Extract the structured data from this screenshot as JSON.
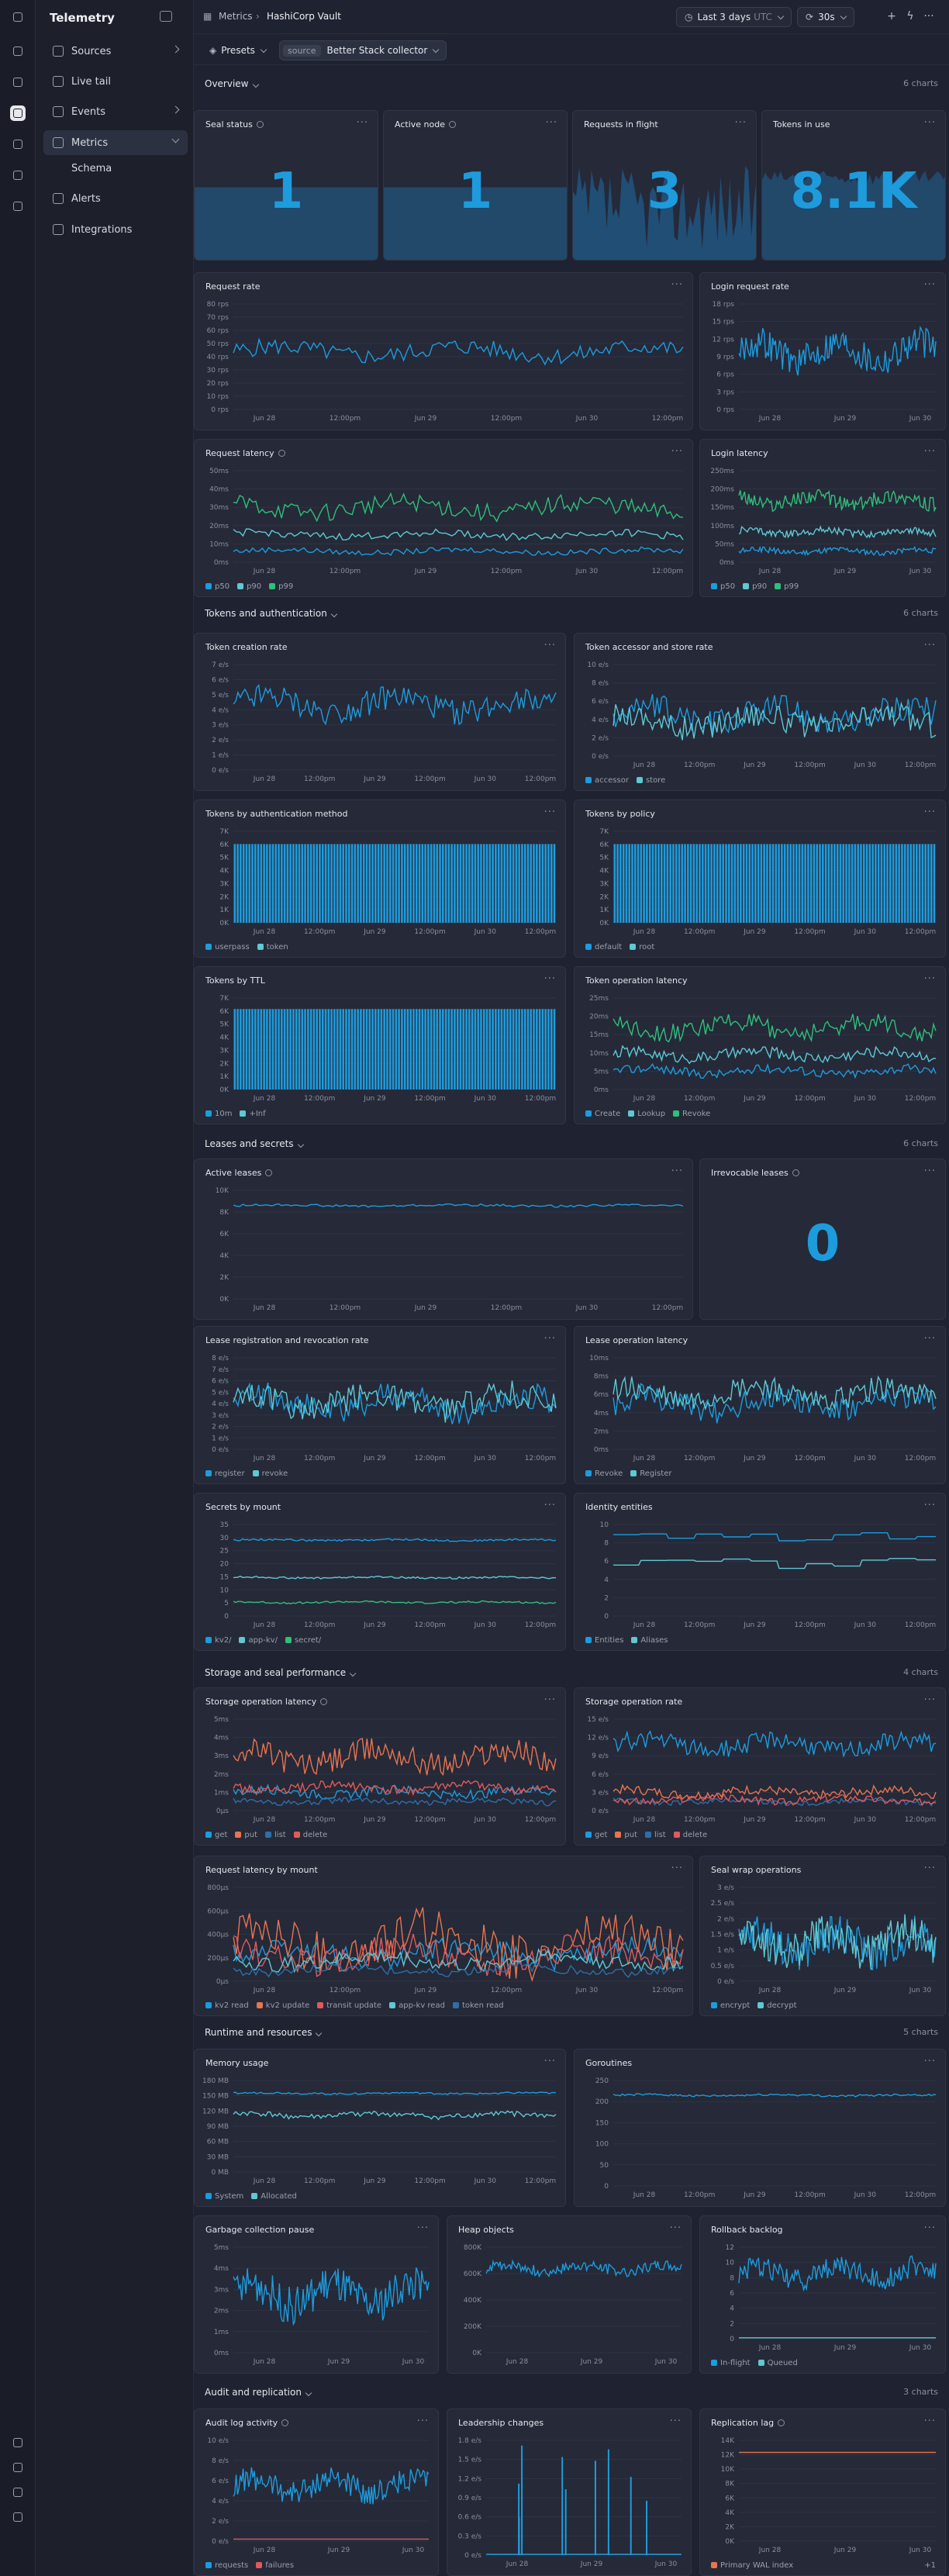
{
  "app": {
    "title": "Telemetry"
  },
  "sidebar": {
    "items": [
      {
        "label": "Sources",
        "icon": "sources-icon",
        "chevron": "right"
      },
      {
        "label": "Live tail",
        "icon": "live-tail-icon"
      },
      {
        "label": "Events",
        "icon": "events-icon",
        "chevron": "right"
      },
      {
        "label": "Metrics",
        "icon": "metrics-icon",
        "chevron": "down",
        "active": true
      },
      {
        "label": "Schema",
        "sub": true
      },
      {
        "label": "Alerts",
        "icon": "alerts-icon"
      },
      {
        "label": "Integrations",
        "icon": "integrations-icon"
      }
    ]
  },
  "topbar": {
    "breadcrumb": [
      "Metrics",
      "HashiCorp Vault"
    ],
    "time_range": "Last 3 days",
    "timezone": "UTC",
    "refresh": "30s"
  },
  "filters": {
    "presets": "Presets",
    "source_label": "source",
    "source_value": "Better Stack collector"
  },
  "colors": {
    "blue": "#1e9bdc",
    "teal": "#5fc8d3",
    "green": "#2fbf7a",
    "orange": "#e8744f",
    "red": "#e05a5a",
    "navy": "#2d6fa8",
    "gray": "#8a90a0"
  },
  "sections": [
    {
      "title": "Overview",
      "count": "6 charts"
    },
    {
      "title": "Tokens and authentication",
      "count": "6 charts"
    },
    {
      "title": "Leases and secrets",
      "count": "6 charts"
    },
    {
      "title": "Storage and seal performance",
      "count": "4 charts"
    },
    {
      "title": "Runtime and resources",
      "count": "5 charts"
    },
    {
      "title": "Audit and replication",
      "count": "3 charts"
    }
  ],
  "stats": [
    {
      "title": "Seal status",
      "value": "1",
      "info": true
    },
    {
      "title": "Active node",
      "value": "1",
      "info": true
    },
    {
      "title": "Requests in flight",
      "value": "3"
    },
    {
      "title": "Tokens in use",
      "value": "8.1K"
    },
    {
      "title": "Irrevocable leases",
      "value": "0",
      "info": true
    }
  ],
  "chart_data": [
    {
      "id": "request_rate",
      "title": "Request rate",
      "type": "line",
      "y_ticks": [
        "80 rps",
        "70 rps",
        "60 rps",
        "50 rps",
        "40 rps",
        "30 rps",
        "20 rps",
        "10 rps",
        "0 rps"
      ],
      "x_ticks": [
        "Jun 28",
        "12:00pm",
        "Jun 29",
        "12:00pm",
        "Jun 30",
        "12:00pm"
      ],
      "series": [
        {
          "color": "blue",
          "level": 0.55,
          "noise": 0.08
        }
      ]
    },
    {
      "id": "login_request_rate",
      "title": "Login request rate",
      "type": "line",
      "y_ticks": [
        "18 rps",
        "15 rps",
        "12 rps",
        "9 rps",
        "6 rps",
        "3 rps",
        "0 rps"
      ],
      "x_ticks": [
        "Jun 28",
        "Jun 29",
        "Jun 30"
      ],
      "series": [
        {
          "color": "blue",
          "level": 0.55,
          "noise": 0.15
        }
      ]
    },
    {
      "id": "request_latency",
      "title": "Request latency",
      "info": true,
      "type": "line",
      "y_ticks": [
        "50ms",
        "40ms",
        "30ms",
        "20ms",
        "10ms",
        "0ms"
      ],
      "x_ticks": [
        "Jun 28",
        "12:00pm",
        "Jun 29",
        "12:00pm",
        "Jun 30",
        "12:00pm"
      ],
      "series": [
        {
          "name": "p50",
          "color": "blue",
          "level": 0.12,
          "noise": 0.03
        },
        {
          "name": "p90",
          "color": "teal",
          "level": 0.3,
          "noise": 0.04
        },
        {
          "name": "p99",
          "color": "green",
          "level": 0.6,
          "noise": 0.1
        }
      ]
    },
    {
      "id": "login_latency",
      "title": "Login latency",
      "type": "line",
      "y_ticks": [
        "250ms",
        "200ms",
        "150ms",
        "100ms",
        "50ms",
        "0ms"
      ],
      "x_ticks": [
        "Jun 28",
        "Jun 29",
        "Jun 30"
      ],
      "series": [
        {
          "name": "p50",
          "color": "blue",
          "level": 0.12,
          "noise": 0.03
        },
        {
          "name": "p90",
          "color": "teal",
          "level": 0.33,
          "noise": 0.04
        },
        {
          "name": "p99",
          "color": "green",
          "level": 0.68,
          "noise": 0.08
        }
      ]
    },
    {
      "id": "token_creation_rate",
      "title": "Token creation rate",
      "type": "line",
      "y_ticks": [
        "7 e/s",
        "6 e/s",
        "5 e/s",
        "4 e/s",
        "3 e/s",
        "2 e/s",
        "1 e/s",
        "0 e/s"
      ],
      "x_ticks": [
        "Jun 28",
        "12:00pm",
        "Jun 29",
        "12:00pm",
        "Jun 30",
        "12:00pm"
      ],
      "series": [
        {
          "color": "blue",
          "level": 0.62,
          "noise": 0.12
        }
      ]
    },
    {
      "id": "token_accessor_store_rate",
      "title": "Token accessor and store rate",
      "type": "line",
      "y_ticks": [
        "10 e/s",
        "8 e/s",
        "6 e/s",
        "4 e/s",
        "2 e/s",
        "0 e/s"
      ],
      "x_ticks": [
        "Jun 28",
        "12:00pm",
        "Jun 29",
        "12:00pm",
        "Jun 30",
        "12:00pm"
      ],
      "series": [
        {
          "name": "accessor",
          "color": "blue",
          "level": 0.45,
          "noise": 0.15
        },
        {
          "name": "store",
          "color": "teal",
          "level": 0.38,
          "noise": 0.14
        }
      ]
    },
    {
      "id": "tokens_by_auth_method",
      "title": "Tokens by authentication method",
      "type": "bar",
      "y_ticks": [
        "7K",
        "6K",
        "5K",
        "4K",
        "3K",
        "2K",
        "1K",
        "0K"
      ],
      "x_ticks": [
        "Jun 28",
        "12:00pm",
        "Jun 29",
        "12:00pm",
        "Jun 30",
        "12:00pm"
      ],
      "series": [
        {
          "name": "userpass",
          "color": "blue",
          "level": 0.86
        },
        {
          "name": "token",
          "color": "teal",
          "level": 0.0
        }
      ]
    },
    {
      "id": "tokens_by_policy",
      "title": "Tokens by policy",
      "type": "bar",
      "y_ticks": [
        "7K",
        "6K",
        "5K",
        "4K",
        "3K",
        "2K",
        "1K",
        "0K"
      ],
      "x_ticks": [
        "Jun 28",
        "12:00pm",
        "Jun 29",
        "12:00pm",
        "Jun 30",
        "12:00pm"
      ],
      "series": [
        {
          "name": "default",
          "color": "blue",
          "level": 0.86
        },
        {
          "name": "root",
          "color": "teal",
          "level": 0.0
        }
      ]
    },
    {
      "id": "tokens_by_ttl",
      "title": "Tokens by TTL",
      "type": "bar",
      "y_ticks": [
        "7K",
        "6K",
        "5K",
        "4K",
        "3K",
        "2K",
        "1K",
        "0K"
      ],
      "x_ticks": [
        "Jun 28",
        "12:00pm",
        "Jun 29",
        "12:00pm",
        "Jun 30",
        "12:00pm"
      ],
      "series": [
        {
          "name": "10m",
          "color": "blue",
          "level": 0.88
        },
        {
          "name": "+Inf",
          "color": "teal",
          "level": 0.0
        }
      ]
    },
    {
      "id": "token_operation_latency",
      "title": "Token operation latency",
      "type": "line",
      "y_ticks": [
        "25ms",
        "20ms",
        "15ms",
        "10ms",
        "5ms",
        "0ms"
      ],
      "x_ticks": [
        "Jun 28",
        "12:00pm",
        "Jun 29",
        "12:00pm",
        "Jun 30",
        "12:00pm"
      ],
      "series": [
        {
          "name": "Create",
          "color": "blue",
          "level": 0.2,
          "noise": 0.05
        },
        {
          "name": "Lookup",
          "color": "teal",
          "level": 0.38,
          "noise": 0.06
        },
        {
          "name": "Revoke",
          "color": "green",
          "level": 0.68,
          "noise": 0.1
        }
      ]
    },
    {
      "id": "active_leases",
      "title": "Active leases",
      "info": true,
      "type": "line",
      "y_ticks": [
        "10K",
        "8K",
        "6K",
        "4K",
        "2K",
        "0K"
      ],
      "x_ticks": [
        "Jun 28",
        "12:00pm",
        "Jun 29",
        "12:00pm",
        "Jun 30",
        "12:00pm"
      ],
      "series": [
        {
          "color": "blue",
          "level": 0.86,
          "noise": 0.01
        }
      ]
    },
    {
      "id": "lease_reg_revoke_rate",
      "title": "Lease registration and revocation rate",
      "type": "line",
      "y_ticks": [
        "8 e/s",
        "7 e/s",
        "6 e/s",
        "5 e/s",
        "4 e/s",
        "3 e/s",
        "2 e/s",
        "1 e/s",
        "0 e/s"
      ],
      "x_ticks": [
        "Jun 28",
        "12:00pm",
        "Jun 29",
        "12:00pm",
        "Jun 30",
        "12:00pm"
      ],
      "series": [
        {
          "name": "register",
          "color": "blue",
          "level": 0.5,
          "noise": 0.15
        },
        {
          "name": "revoke",
          "color": "teal",
          "level": 0.52,
          "noise": 0.15
        }
      ]
    },
    {
      "id": "lease_operation_latency",
      "title": "Lease operation latency",
      "type": "line",
      "y_ticks": [
        "10ms",
        "8ms",
        "6ms",
        "4ms",
        "2ms",
        "0ms"
      ],
      "x_ticks": [
        "Jun 28",
        "12:00pm",
        "Jun 29",
        "12:00pm",
        "Jun 30",
        "12:00pm"
      ],
      "series": [
        {
          "name": "Revoke",
          "color": "blue",
          "level": 0.5,
          "noise": 0.14
        },
        {
          "name": "Register",
          "color": "teal",
          "level": 0.6,
          "noise": 0.13
        }
      ]
    },
    {
      "id": "secrets_by_mount",
      "title": "Secrets by mount",
      "type": "line",
      "y_ticks": [
        "35",
        "30",
        "25",
        "20",
        "15",
        "10",
        "5",
        "0"
      ],
      "x_ticks": [
        "Jun 28",
        "12:00pm",
        "Jun 29",
        "12:00pm",
        "Jun 30",
        "12:00pm"
      ],
      "series": [
        {
          "name": "kv2/",
          "color": "blue",
          "level": 0.83,
          "noise": 0.01
        },
        {
          "name": "app-kv/",
          "color": "teal",
          "level": 0.42,
          "noise": 0.01
        },
        {
          "name": "secret/",
          "color": "green",
          "level": 0.15,
          "noise": 0.01
        }
      ]
    },
    {
      "id": "identity_entities",
      "title": "Identity entities",
      "type": "step",
      "y_ticks": [
        "10",
        "8",
        "6",
        "4",
        "2",
        "0"
      ],
      "x_ticks": [
        "Jun 28",
        "12:00pm",
        "Jun 29",
        "12:00pm",
        "Jun 30",
        "12:00pm"
      ],
      "series": [
        {
          "name": "Entities",
          "color": "blue",
          "level": 0.86,
          "noise": 0.05
        },
        {
          "name": "Aliases",
          "color": "teal",
          "level": 0.58,
          "noise": 0.06
        }
      ]
    },
    {
      "id": "storage_operation_latency",
      "title": "Storage operation latency",
      "info": true,
      "type": "line",
      "y_ticks": [
        "5ms",
        "4ms",
        "3ms",
        "2ms",
        "1ms",
        "0μs"
      ],
      "x_ticks": [
        "Jun 28",
        "12:00pm",
        "Jun 29",
        "12:00pm",
        "Jun 30",
        "12:00pm"
      ],
      "series": [
        {
          "name": "get",
          "color": "blue",
          "level": 0.2,
          "noise": 0.05
        },
        {
          "name": "put",
          "color": "orange",
          "level": 0.58,
          "noise": 0.14
        },
        {
          "name": "list",
          "color": "navy",
          "level": 0.1,
          "noise": 0.03
        },
        {
          "name": "delete",
          "color": "red",
          "level": 0.25,
          "noise": 0.05
        }
      ]
    },
    {
      "id": "storage_operation_rate",
      "title": "Storage operation rate",
      "type": "line",
      "y_ticks": [
        "15 e/s",
        "12 e/s",
        "9 e/s",
        "6 e/s",
        "3 e/s",
        "0 e/s"
      ],
      "x_ticks": [
        "Jun 28",
        "12:00pm",
        "Jun 29",
        "12:00pm",
        "Jun 30",
        "12:00pm"
      ],
      "series": [
        {
          "name": "get",
          "color": "blue",
          "level": 0.72,
          "noise": 0.1
        },
        {
          "name": "put",
          "color": "orange",
          "level": 0.2,
          "noise": 0.05
        },
        {
          "name": "list",
          "color": "navy",
          "level": 0.1,
          "noise": 0.03
        },
        {
          "name": "delete",
          "color": "red",
          "level": 0.12,
          "noise": 0.04
        }
      ]
    },
    {
      "id": "request_latency_by_mount",
      "title": "Request latency by mount",
      "type": "line",
      "y_ticks": [
        "800μs",
        "600μs",
        "400μs",
        "200μs",
        "0μs"
      ],
      "x_ticks": [
        "Jun 28",
        "12:00pm",
        "Jun 29",
        "12:00pm",
        "Jun 30",
        "12:00pm"
      ],
      "series": [
        {
          "name": "kv2 read",
          "color": "blue",
          "level": 0.3,
          "noise": 0.12
        },
        {
          "name": "kv2 update",
          "color": "orange",
          "level": 0.4,
          "noise": 0.25
        },
        {
          "name": "transit update",
          "color": "red",
          "level": 0.28,
          "noise": 0.15
        },
        {
          "name": "app-kv read",
          "color": "teal",
          "level": 0.22,
          "noise": 0.08
        },
        {
          "name": "token read",
          "color": "navy",
          "level": 0.12,
          "noise": 0.05
        }
      ]
    },
    {
      "id": "seal_wrap_operations",
      "title": "Seal wrap operations",
      "type": "line",
      "y_ticks": [
        "3 e/s",
        "2.5 e/s",
        "2 e/s",
        "1.5 e/s",
        "1 e/s",
        "0.5 e/s",
        "0 e/s"
      ],
      "x_ticks": [
        "Jun 28",
        "Jun 29",
        "Jun 30"
      ],
      "series": [
        {
          "name": "encrypt",
          "color": "blue",
          "level": 0.4,
          "noise": 0.2
        },
        {
          "name": "decrypt",
          "color": "teal",
          "level": 0.42,
          "noise": 0.2
        }
      ]
    },
    {
      "id": "memory_usage",
      "title": "Memory usage",
      "type": "line",
      "y_ticks": [
        "180 MB",
        "150 MB",
        "120 MB",
        "90 MB",
        "60 MB",
        "30 MB",
        "0 MB"
      ],
      "x_ticks": [
        "Jun 28",
        "12:00pm",
        "Jun 29",
        "12:00pm",
        "Jun 30",
        "12:00pm"
      ],
      "series": [
        {
          "name": "System",
          "color": "blue",
          "level": 0.86,
          "noise": 0.01
        },
        {
          "name": "Allocated",
          "color": "teal",
          "level": 0.62,
          "noise": 0.03
        }
      ]
    },
    {
      "id": "goroutines",
      "title": "Goroutines",
      "type": "line",
      "y_ticks": [
        "250",
        "200",
        "150",
        "100",
        "50",
        "0"
      ],
      "x_ticks": [
        "Jun 28",
        "12:00pm",
        "Jun 29",
        "12:00pm",
        "Jun 30",
        "12:00pm"
      ],
      "series": [
        {
          "color": "blue",
          "level": 0.86,
          "noise": 0.01
        }
      ]
    },
    {
      "id": "gc_pause",
      "title": "Garbage collection pause",
      "type": "line",
      "y_ticks": [
        "5ms",
        "4ms",
        "3ms",
        "2ms",
        "1ms",
        "0ms"
      ],
      "x_ticks": [
        "Jun 28",
        "Jun 29",
        "Jun 30"
      ],
      "series": [
        {
          "color": "blue",
          "level": 0.55,
          "noise": 0.18
        }
      ]
    },
    {
      "id": "heap_objects",
      "title": "Heap objects",
      "type": "line",
      "y_ticks": [
        "800K",
        "600K",
        "400K",
        "200K",
        "0K"
      ],
      "x_ticks": [
        "Jun 28",
        "Jun 29",
        "Jun 30"
      ],
      "series": [
        {
          "color": "blue",
          "level": 0.8,
          "noise": 0.05
        }
      ]
    },
    {
      "id": "rollback_backlog",
      "title": "Rollback backlog",
      "type": "line",
      "y_ticks": [
        "12",
        "10",
        "8",
        "6",
        "4",
        "2",
        "0"
      ],
      "x_ticks": [
        "Jun 28",
        "Jun 29",
        "Jun 30"
      ],
      "series": [
        {
          "name": "In-flight",
          "color": "blue",
          "level": 0.72,
          "noise": 0.12
        },
        {
          "name": "Queued",
          "color": "teal",
          "level": 0.01,
          "noise": 0.0
        }
      ]
    },
    {
      "id": "audit_log_activity",
      "title": "Audit log activity",
      "info": true,
      "type": "line",
      "y_ticks": [
        "10 e/s",
        "8 e/s",
        "6 e/s",
        "4 e/s",
        "2 e/s",
        "0 e/s"
      ],
      "x_ticks": [
        "Jun 28",
        "Jun 29",
        "Jun 30"
      ],
      "series": [
        {
          "name": "requests",
          "color": "blue",
          "level": 0.55,
          "noise": 0.12
        },
        {
          "name": "failures",
          "color": "red",
          "level": 0.02,
          "noise": 0.0
        }
      ]
    },
    {
      "id": "leadership_changes",
      "title": "Leadership changes",
      "type": "spike",
      "y_ticks": [
        "1.8 e/s",
        "1.5 e/s",
        "1.2 e/s",
        "0.9 e/s",
        "0.6 e/s",
        "0.3 e/s",
        "0 e/s"
      ],
      "x_ticks": [
        "Jun 28",
        "Jun 29",
        "Jun 30"
      ],
      "series": [
        {
          "color": "blue",
          "level": 0.0,
          "noise": 0.0
        }
      ]
    },
    {
      "id": "replication_lag",
      "title": "Replication lag",
      "info": true,
      "type": "line",
      "y_ticks": [
        "14K",
        "12K",
        "10K",
        "8K",
        "6K",
        "4K",
        "2K",
        "0K"
      ],
      "x_ticks": [
        "Jun 28",
        "Jun 29",
        "Jun 30"
      ],
      "series": [
        {
          "name": "Primary WAL index",
          "color": "orange",
          "level": 0.88,
          "noise": 0.0
        }
      ],
      "legend_extra": "+1"
    }
  ]
}
